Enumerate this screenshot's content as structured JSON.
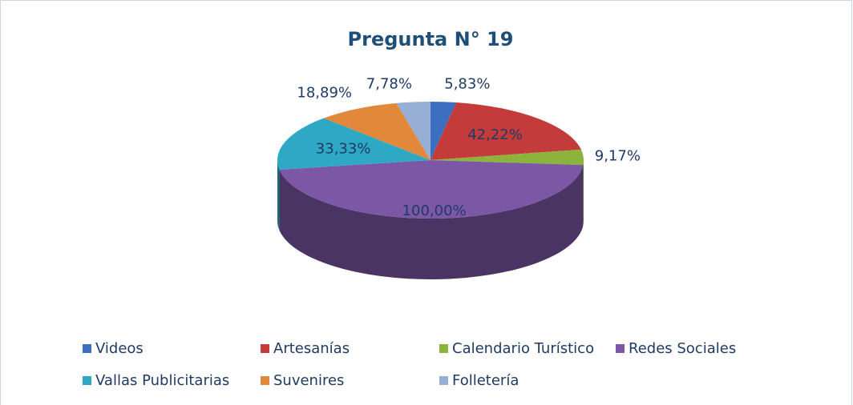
{
  "chart_data": {
    "type": "pie",
    "title": "Pregunta N° 19",
    "categories": [
      "Videos",
      "Artesanías",
      "Calendario Turístico",
      "Redes Sociales",
      "Vallas Publicitarias",
      "Suvenires",
      "Folletería"
    ],
    "values": [
      5.83,
      42.22,
      9.17,
      100,
      33.33,
      18.89,
      7.78
    ],
    "value_labels": [
      "5,83%",
      "42,22%",
      "9,17%",
      "100,00%",
      "33,33%",
      "18,89%",
      "7,78%"
    ],
    "colors": [
      "#3d6fc0",
      "#c33b3a",
      "#8cb43d",
      "#7c57a6",
      "#2ea8c4",
      "#e2883a",
      "#97aed5"
    ],
    "legend": "bottom"
  }
}
